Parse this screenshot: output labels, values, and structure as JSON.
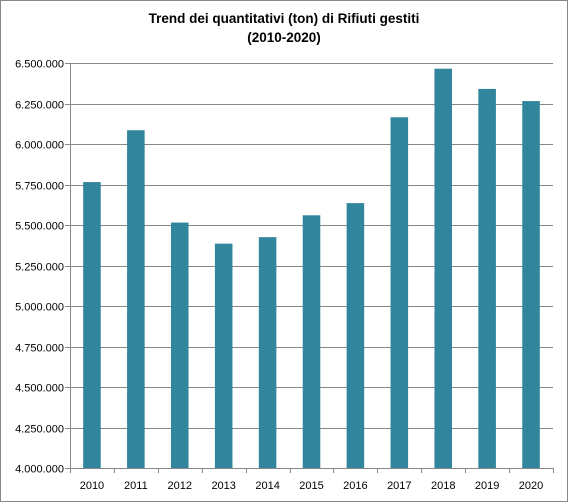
{
  "chart_data": {
    "type": "bar",
    "title": "Trend dei quantitativi (ton) di Rifiuti gestiti",
    "subtitle": "(2010-2020)",
    "xlabel": "",
    "ylabel": "",
    "categories": [
      "2010",
      "2011",
      "2012",
      "2013",
      "2014",
      "2015",
      "2016",
      "2017",
      "2018",
      "2019",
      "2020"
    ],
    "values": [
      5765000,
      6085000,
      5515000,
      5385000,
      5425000,
      5560000,
      5635000,
      6165000,
      6465000,
      6340000,
      6265000
    ],
    "ylim": [
      4000000,
      6500000
    ],
    "yticks": [
      4000000,
      4250000,
      4500000,
      4750000,
      5000000,
      5250000,
      5500000,
      5750000,
      6000000,
      6250000,
      6500000
    ],
    "ytick_labels": [
      "4.000.000",
      "4.250.000",
      "4.500.000",
      "4.750.000",
      "5.000.000",
      "5.250.000",
      "5.500.000",
      "5.750.000",
      "6.000.000",
      "6.250.000",
      "6.500.000"
    ],
    "grid": true,
    "legend": "none",
    "bar_color": "#31859c",
    "grid_color": "#868686"
  }
}
